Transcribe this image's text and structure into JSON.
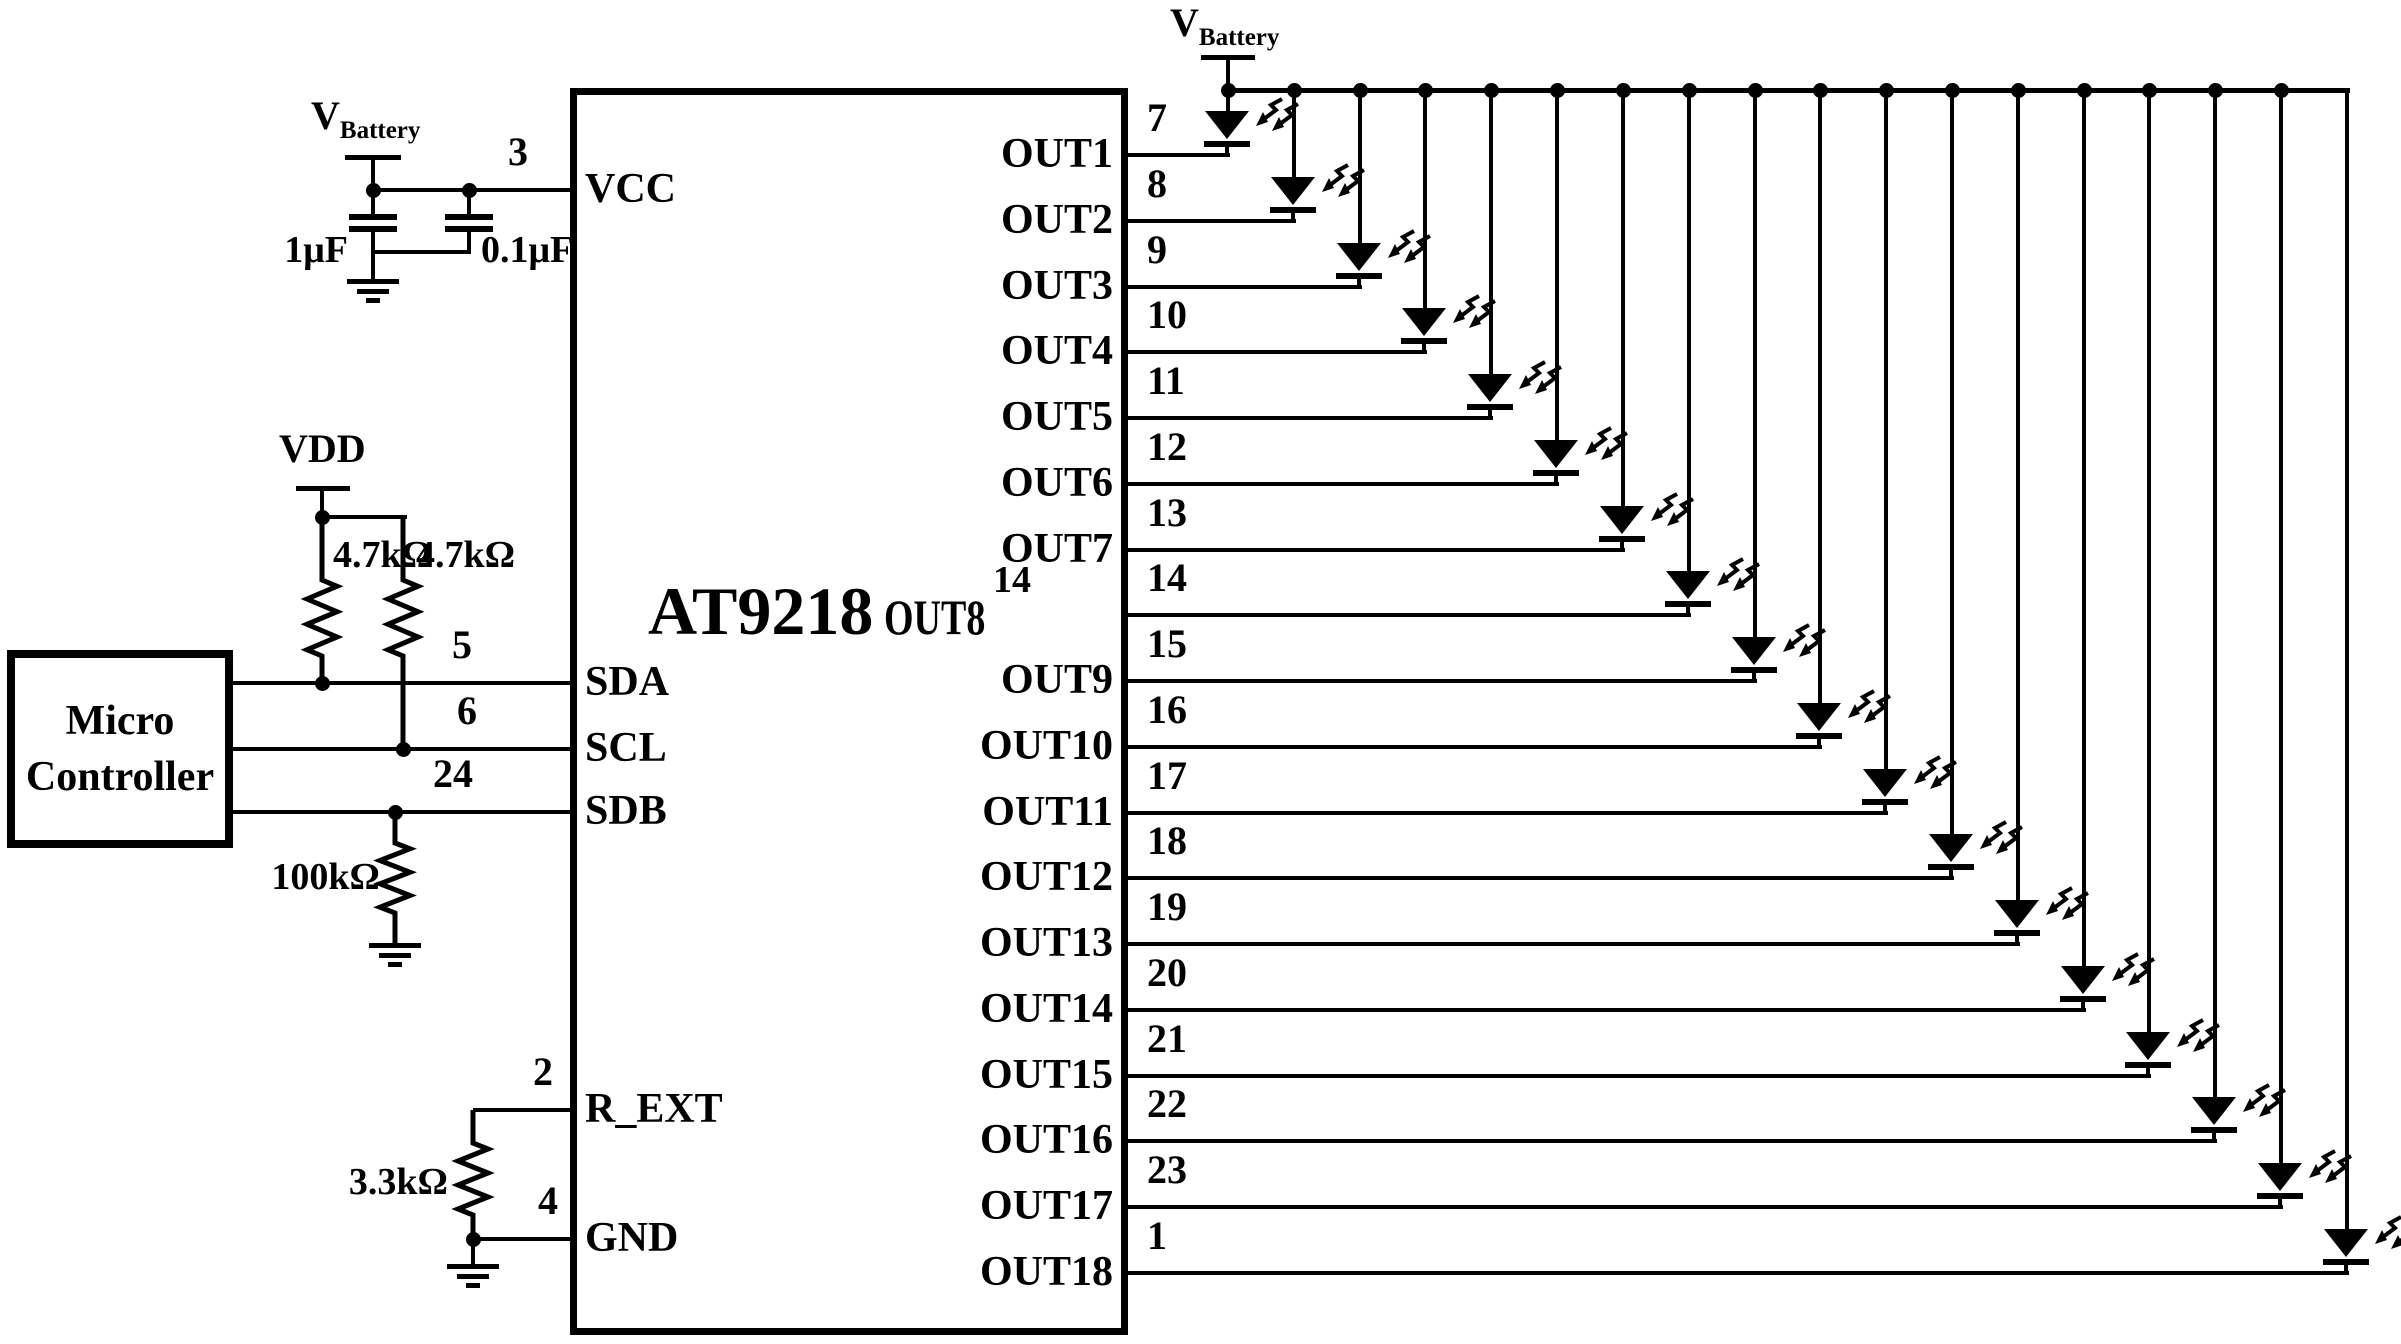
{
  "colors": {
    "ink": "#000000",
    "paper": "#ffffff"
  },
  "chip": {
    "name": "AT9218"
  },
  "microcontroller": {
    "line1": "Micro",
    "line2": "Controller"
  },
  "rails": {
    "vbattery_left": {
      "symbol": "V",
      "subscript": "Battery"
    },
    "vbattery_right": {
      "symbol": "V",
      "subscript": "Battery"
    },
    "vdd": "VDD"
  },
  "components": {
    "cap_bulk": "1μF",
    "cap_bypass": "0.1μF",
    "pullup_sda": "4.7kΩ",
    "pullup_scl": "4.7kΩ",
    "pulldown_sdb": "100kΩ",
    "r_ext": "3.3kΩ"
  },
  "left_pins": [
    {
      "name": "VCC",
      "number": "3"
    },
    {
      "name": "SDA",
      "number": "5"
    },
    {
      "name": "SCL",
      "number": "6"
    },
    {
      "name": "SDB",
      "number": "24"
    },
    {
      "name": "R_EXT",
      "number": "2"
    },
    {
      "name": "GND",
      "number": "4"
    }
  ],
  "right_pins": [
    {
      "name": "OUT1",
      "number": "7"
    },
    {
      "name": "OUT2",
      "number": "8"
    },
    {
      "name": "OUT3",
      "number": "9"
    },
    {
      "name": "OUT4",
      "number": "10"
    },
    {
      "name": "OUT5",
      "number": "11"
    },
    {
      "name": "OUT6",
      "number": "12"
    },
    {
      "name": "OUT7",
      "number": "13"
    },
    {
      "name": "OUT8",
      "number": "14"
    },
    {
      "name": "OUT9",
      "number": "15"
    },
    {
      "name": "OUT10",
      "number": "16"
    },
    {
      "name": "OUT11",
      "number": "17"
    },
    {
      "name": "OUT12",
      "number": "18"
    },
    {
      "name": "OUT13",
      "number": "19"
    },
    {
      "name": "OUT14",
      "number": "20"
    },
    {
      "name": "OUT15",
      "number": "21"
    },
    {
      "name": "OUT16",
      "number": "22"
    },
    {
      "name": "OUT17",
      "number": "23"
    },
    {
      "name": "OUT18",
      "number": "1"
    }
  ],
  "led_array": {
    "count": 18,
    "supply": "V Battery",
    "symbol": "led"
  }
}
